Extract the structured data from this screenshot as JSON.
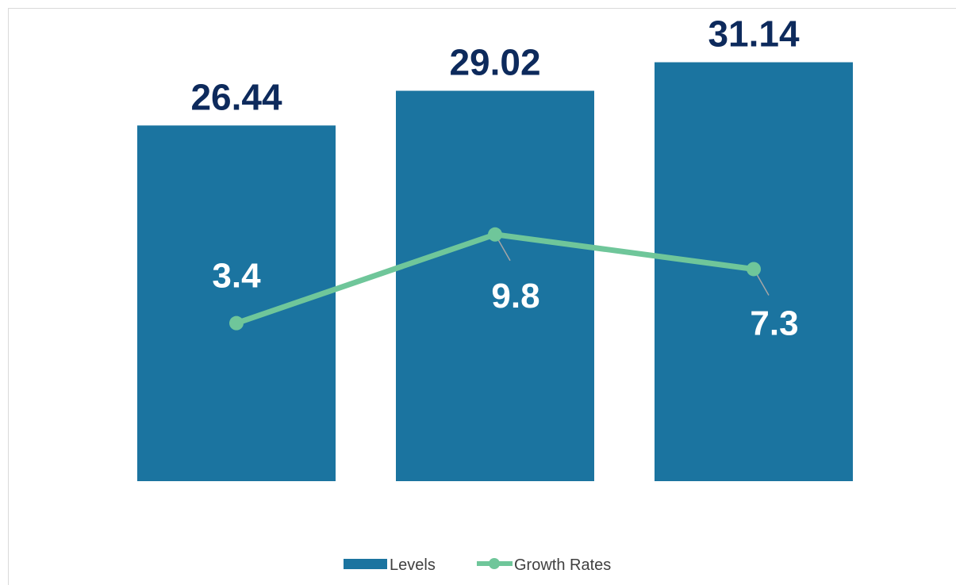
{
  "chart_data": {
    "type": "bar",
    "categories": [
      "",
      "",
      ""
    ],
    "series": [
      {
        "name": "Levels",
        "type": "bar",
        "color": "#1b74a0",
        "values": [
          26.44,
          29.02,
          31.14
        ],
        "labels": [
          "26.44",
          "29.02",
          "31.14"
        ]
      },
      {
        "name": "Growth Rates",
        "type": "line",
        "color": "#6fc69a",
        "values": [
          3.4,
          9.8,
          7.3
        ],
        "labels": [
          "3.4",
          "9.8",
          "7.3"
        ]
      }
    ],
    "title": "",
    "xlabel": "",
    "ylabel": "",
    "ylim": [
      0,
      34
    ],
    "y2lim": [
      -8,
      25
    ],
    "grid": false,
    "legend": "bottom-center"
  },
  "colors": {
    "bar": "#1b74a0",
    "line": "#6fc69a",
    "bar_label": "#0d2a5c",
    "line_label": "#ffffff",
    "leader": "#a6a6a6"
  }
}
